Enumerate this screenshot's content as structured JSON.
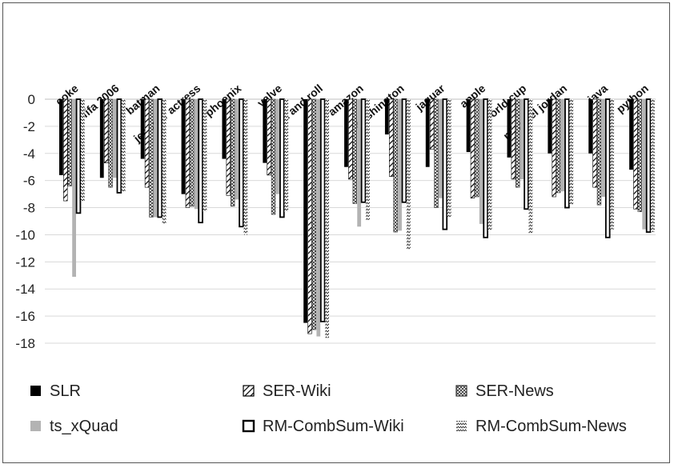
{
  "chart_data": {
    "type": "bar",
    "categories": [
      "coke",
      "fifa 2006",
      "batman",
      "jennifer actress",
      "phoenix",
      "valve",
      "rock and roll",
      "amazon",
      "washington",
      "jaguar",
      "apple",
      "world cup",
      "michael jordan",
      "java",
      "python"
    ],
    "ylim": [
      -18,
      0
    ],
    "yticks": [
      0,
      -2,
      -4,
      -6,
      -8,
      -10,
      -12,
      -14,
      -16,
      -18
    ],
    "grid": true,
    "legend_position": "bottom",
    "series": [
      {
        "name": "SLR",
        "pattern": "solid-black",
        "values": [
          -5.6,
          -5.8,
          -4.4,
          -7.0,
          -4.4,
          -4.7,
          -16.5,
          -5.0,
          -2.6,
          -5.0,
          -3.9,
          -4.3,
          -4.0,
          -4.0,
          -5.2
        ]
      },
      {
        "name": "SER-Wiki",
        "pattern": "diagonal-hatch",
        "values": [
          -7.5,
          -4.7,
          -6.5,
          -8.0,
          -7.1,
          -5.6,
          -17.3,
          -5.9,
          -5.7,
          -3.7,
          -7.3,
          -5.9,
          -7.2,
          -6.5,
          -8.1
        ]
      },
      {
        "name": "SER-News",
        "pattern": "crosshatch",
        "values": [
          -6.4,
          -6.5,
          -8.7,
          -7.9,
          -7.9,
          -8.5,
          -17.0,
          -7.7,
          -9.8,
          -8.0,
          -7.2,
          -6.5,
          -6.9,
          -7.8,
          -8.3
        ]
      },
      {
        "name": "ts_xQuad",
        "pattern": "solid-gray",
        "values": [
          -13.1,
          -5.8,
          -8.7,
          -8.1,
          -7.4,
          -7.0,
          -17.5,
          -9.4,
          -9.7,
          -7.3,
          -9.2,
          -5.9,
          -6.8,
          -7.2,
          -9.6
        ]
      },
      {
        "name": "RM-CombSum-Wiki",
        "pattern": "hollow",
        "values": [
          -8.4,
          -6.9,
          -8.7,
          -9.1,
          -9.4,
          -8.7,
          -16.4,
          -7.6,
          -7.6,
          -9.6,
          -10.2,
          -8.1,
          -8.0,
          -10.2,
          -9.8
        ]
      },
      {
        "name": "RM-CombSum-News",
        "pattern": "zigzag",
        "values": [
          -7.5,
          -6.8,
          -9.2,
          -8.3,
          -10.0,
          -8.3,
          -17.6,
          -8.9,
          -11.1,
          -8.7,
          -9.7,
          -9.9,
          -7.8,
          -9.6,
          -9.8
        ]
      }
    ]
  }
}
